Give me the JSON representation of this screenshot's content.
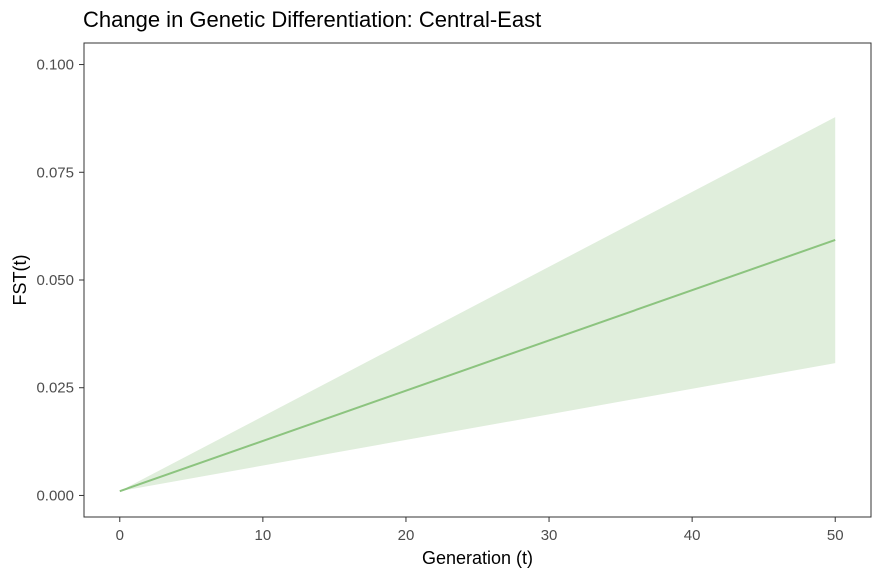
{
  "chart_data": {
    "type": "area",
    "title": "Change in Genetic Differentiation: Central-East",
    "xlabel": "Generation (t)",
    "ylabel": "FST(t)",
    "xlim": [
      -2.5,
      52.5
    ],
    "ylim": [
      -0.005,
      0.105
    ],
    "xticks": [
      0,
      10,
      20,
      30,
      40,
      50
    ],
    "yticks": [
      0.0,
      0.025,
      0.05,
      0.075,
      0.1
    ],
    "xtick_labels": [
      "0",
      "10",
      "20",
      "30",
      "40",
      "50"
    ],
    "ytick_labels": [
      "0.000",
      "0.025",
      "0.050",
      "0.075",
      "0.100"
    ],
    "grid": false,
    "legend": "none",
    "series": [
      {
        "x": [
          0,
          50
        ],
        "y": [
          0.001,
          0.0593
        ],
        "lower": [
          0.001,
          0.0307
        ],
        "upper": [
          0.001,
          0.0878
        ],
        "line_color": "#8cc47f",
        "band_color": "#e0eedc"
      }
    ]
  }
}
